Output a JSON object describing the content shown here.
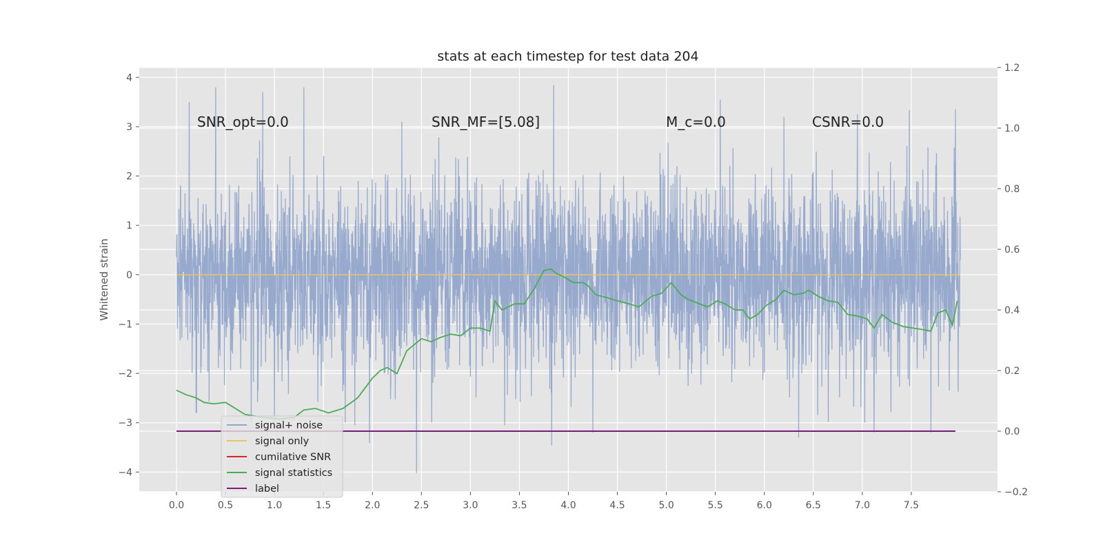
{
  "chart_data": {
    "type": "line",
    "title": "stats at each timestep for test data 204",
    "ylabel": "Whitened strain",
    "xlabel": "",
    "xlim": [
      -0.38,
      8.38
    ],
    "ylim": [
      -4.4,
      4.2
    ],
    "y2lim": [
      -0.2,
      1.2
    ],
    "grid": true,
    "legend_placement": "lower-left",
    "x_ticks": [
      "0.0",
      "0.5",
      "1.0",
      "1.5",
      "2.0",
      "2.5",
      "3.0",
      "3.5",
      "4.0",
      "4.5",
      "5.0",
      "5.5",
      "6.0",
      "6.5",
      "7.0",
      "7.5"
    ],
    "y_ticks": [
      "−4",
      "−3",
      "−2",
      "−1",
      "0",
      "1",
      "2",
      "3",
      "4"
    ],
    "y2_ticks": [
      "−0.2",
      "0.0",
      "0.2",
      "0.4",
      "0.6",
      "0.8",
      "1.0",
      "1.2"
    ],
    "annotations": [
      {
        "name": "snr-opt",
        "text": "SNR_opt=0.0",
        "x": 0.2,
        "y": 3.0
      },
      {
        "name": "snr-mf",
        "text": "SNR_MF=[5.08]",
        "x": 2.6,
        "y": 3.0
      },
      {
        "name": "mc",
        "text": "M_c=0.0",
        "x": 5.0,
        "y": 3.0
      },
      {
        "name": "csnr",
        "text": "CSNR=0.0",
        "x": 6.5,
        "y": 3.0
      }
    ],
    "series": [
      {
        "name": "signal+ noise",
        "color": "#92a6cc",
        "axis": "left",
        "x_range": [
          0.0,
          8.0
        ],
        "envelope_typical": [
          -1.8,
          1.8
        ],
        "peaks_max": [
          [
            0.13,
            3.5
          ],
          [
            0.4,
            3.8
          ],
          [
            0.88,
            3.7
          ],
          [
            1.3,
            3.8
          ],
          [
            2.3,
            3.1
          ],
          [
            3.85,
            3.84
          ],
          [
            5.55,
            3.55
          ],
          [
            6.2,
            3.2
          ],
          [
            6.95,
            3.25
          ],
          [
            7.48,
            3.34
          ],
          [
            7.95,
            3.35
          ]
        ],
        "peaks_min": [
          [
            0.2,
            -2.8
          ],
          [
            1.0,
            -3.0
          ],
          [
            1.82,
            -3.05
          ],
          [
            1.97,
            -3.41
          ],
          [
            2.45,
            -4.02
          ],
          [
            3.35,
            -3.05
          ],
          [
            3.83,
            -3.46
          ],
          [
            4.25,
            -3.2
          ],
          [
            6.35,
            -3.3
          ],
          [
            7.12,
            -3.2
          ],
          [
            7.7,
            -3.2
          ]
        ]
      },
      {
        "name": "signal only",
        "color": "#e8c465",
        "axis": "left",
        "x": [
          0.0,
          8.0
        ],
        "y": [
          0.0,
          0.0
        ]
      },
      {
        "name": "cumilative SNR",
        "color": "#d62728",
        "axis": "left",
        "x": [],
        "y": []
      },
      {
        "name": "signal statistics",
        "color": "#4daa57",
        "axis": "right",
        "x": [
          0.0,
          0.1,
          0.2,
          0.28,
          0.38,
          0.5,
          0.7,
          0.9,
          1.05,
          1.2,
          1.3,
          1.42,
          1.55,
          1.7,
          1.85,
          2.0,
          2.08,
          2.15,
          2.25,
          2.35,
          2.5,
          2.6,
          2.7,
          2.8,
          2.9,
          3.0,
          3.1,
          3.2,
          3.25,
          3.32,
          3.45,
          3.55,
          3.65,
          3.75,
          3.82,
          3.88,
          3.95,
          4.05,
          4.15,
          4.2,
          4.28,
          4.4,
          4.5,
          4.62,
          4.72,
          4.85,
          4.95,
          5.05,
          5.15,
          5.22,
          5.3,
          5.42,
          5.52,
          5.6,
          5.7,
          5.78,
          5.85,
          5.93,
          6.02,
          6.12,
          6.2,
          6.3,
          6.4,
          6.45,
          6.55,
          6.65,
          6.75,
          6.85,
          6.95,
          7.05,
          7.12,
          7.2,
          7.3,
          7.42,
          7.52,
          7.62,
          7.7,
          7.77,
          7.85,
          7.92,
          7.97
        ],
        "y": [
          0.135,
          0.12,
          0.11,
          0.095,
          0.09,
          0.095,
          0.055,
          0.045,
          0.04,
          0.045,
          0.07,
          0.075,
          0.06,
          0.075,
          0.11,
          0.175,
          0.2,
          0.21,
          0.19,
          0.265,
          0.305,
          0.295,
          0.31,
          0.32,
          0.315,
          0.34,
          0.34,
          0.33,
          0.43,
          0.4,
          0.42,
          0.42,
          0.47,
          0.53,
          0.535,
          0.52,
          0.51,
          0.49,
          0.49,
          0.48,
          0.45,
          0.44,
          0.43,
          0.42,
          0.41,
          0.445,
          0.455,
          0.49,
          0.45,
          0.435,
          0.425,
          0.41,
          0.43,
          0.42,
          0.4,
          0.4,
          0.37,
          0.385,
          0.415,
          0.435,
          0.465,
          0.45,
          0.455,
          0.465,
          0.445,
          0.43,
          0.425,
          0.385,
          0.38,
          0.37,
          0.34,
          0.385,
          0.36,
          0.345,
          0.34,
          0.335,
          0.33,
          0.39,
          0.4,
          0.35,
          0.43
        ]
      },
      {
        "name": "label",
        "color": "#7a1a7a",
        "axis": "right",
        "x": [
          0.0,
          7.95
        ],
        "y": [
          0.0,
          0.0
        ]
      }
    ]
  }
}
